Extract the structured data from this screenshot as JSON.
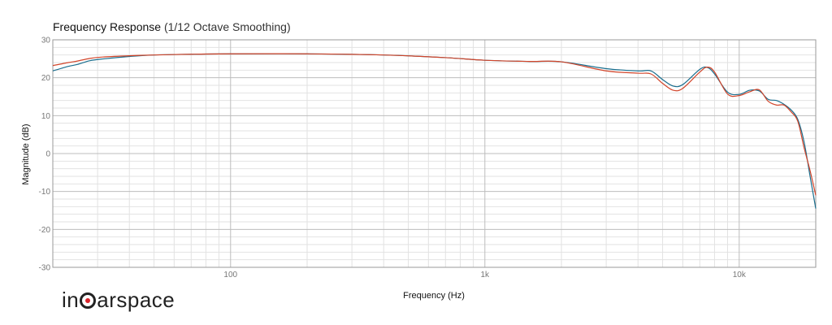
{
  "title": "Frequency Response",
  "subtitle": "(1/12 Octave Smoothing)",
  "logo_text": "inearspace",
  "colors": {
    "series_blue": "#1a6e8e",
    "series_red": "#d2452a",
    "grid_major": "#bdbdbd",
    "grid_minor": "#e2e2e2",
    "axis": "#9a9a9a",
    "logo_accent": "#d8232a"
  },
  "chart_data": {
    "type": "line",
    "title": "Frequency Response (1/12 Octave Smoothing)",
    "xlabel": "Frequency (Hz)",
    "ylabel": "Magnitude (dB)",
    "xscale": "log",
    "xlim": [
      20,
      20000
    ],
    "ylim": [
      -30,
      30
    ],
    "x_ticks": [
      {
        "value": 100,
        "label": "100"
      },
      {
        "value": 1000,
        "label": "1k"
      },
      {
        "value": 10000,
        "label": "10k"
      }
    ],
    "y_ticks": [
      30,
      20,
      10,
      0,
      -10,
      -20,
      -30
    ],
    "grid": true,
    "legend": "none",
    "series": [
      {
        "color": "#1a6e8e",
        "x": [
          20,
          23,
          25,
          28,
          32,
          40,
          50,
          70,
          100,
          200,
          400,
          700,
          1000,
          1500,
          2000,
          3000,
          4000,
          4500,
          5000,
          5500,
          6000,
          7000,
          7500,
          8000,
          9000,
          10000,
          11000,
          12000,
          13000,
          14000,
          15000,
          16000,
          17000,
          18000,
          19000,
          20000
        ],
        "y": [
          21.8,
          23,
          23.5,
          24.5,
          25,
          25.6,
          26,
          26.2,
          26.3,
          26.3,
          26,
          25.3,
          24.6,
          24.3,
          24.2,
          22.4,
          21.8,
          21.8,
          19.5,
          17.8,
          18.2,
          22.2,
          22.7,
          21,
          16.2,
          15.6,
          16.7,
          16.5,
          14.3,
          14,
          13,
          11.5,
          9,
          3,
          -6,
          -14.5
        ]
      },
      {
        "color": "#d2452a",
        "x": [
          20,
          23,
          25,
          28,
          32,
          40,
          50,
          70,
          100,
          200,
          400,
          700,
          1000,
          1500,
          2000,
          3000,
          4000,
          4500,
          5000,
          5500,
          6000,
          7000,
          7500,
          8000,
          9000,
          10000,
          11000,
          12000,
          13000,
          14000,
          15000,
          16000,
          17000,
          18000,
          19000,
          20000
        ],
        "y": [
          23.2,
          24,
          24.4,
          25.1,
          25.5,
          25.8,
          26,
          26.2,
          26.3,
          26.3,
          26,
          25.3,
          24.6,
          24.3,
          24.2,
          21.8,
          21.2,
          21,
          18.5,
          16.7,
          17.2,
          21.5,
          22.8,
          21.5,
          15.7,
          15.3,
          16.3,
          16.8,
          13.8,
          12.8,
          12.8,
          11,
          8.5,
          1.5,
          -4.5,
          -11
        ]
      }
    ]
  }
}
